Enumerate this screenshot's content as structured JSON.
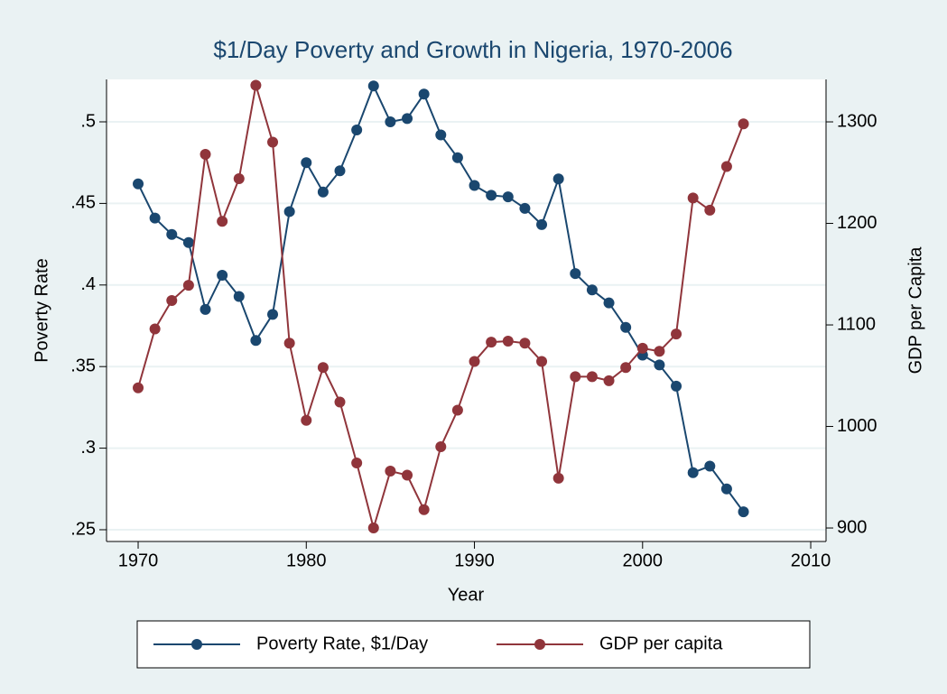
{
  "chart_data": {
    "type": "line",
    "title": "$1/Day Poverty and Growth in Nigeria, 1970-2006",
    "x_label": "Year",
    "y_label": "Poverty Rate",
    "y2_label": "GDP per Capita",
    "x": [
      1970,
      1971,
      1972,
      1973,
      1974,
      1975,
      1976,
      1977,
      1978,
      1979,
      1980,
      1981,
      1982,
      1983,
      1984,
      1985,
      1986,
      1987,
      1988,
      1989,
      1990,
      1991,
      1992,
      1993,
      1994,
      1995,
      1996,
      1997,
      1998,
      1999,
      2000,
      2001,
      2002,
      2003,
      2004,
      2005,
      2006
    ],
    "series": [
      {
        "name": "Poverty Rate, $1/Day",
        "color": "#1a476f",
        "values": [
          0.462,
          0.441,
          0.431,
          0.426,
          0.385,
          0.406,
          0.393,
          0.366,
          0.382,
          0.445,
          0.475,
          0.457,
          0.47,
          0.495,
          0.522,
          0.5,
          0.502,
          0.517,
          0.492,
          0.478,
          0.461,
          0.455,
          0.454,
          0.447,
          0.437,
          0.465,
          0.407,
          0.397,
          0.389,
          0.374,
          0.357,
          0.351,
          0.338,
          0.285,
          0.289,
          0.275,
          0.261
        ]
      },
      {
        "name": "GDP per capita",
        "color": "#90353b",
        "axis": "y2",
        "values": [
          1038,
          1096,
          1124,
          1139,
          1268,
          1202,
          1244,
          1336,
          1280,
          1082,
          1006,
          1058,
          1024,
          964,
          900,
          956,
          952,
          918,
          980,
          1016,
          1064,
          1083,
          1084,
          1082,
          1064,
          949,
          1049,
          1049,
          1045,
          1058,
          1077,
          1074,
          1091,
          1225,
          1213,
          1256,
          1298
        ]
      }
    ],
    "xlim": [
      1968.12,
      2010.91
    ],
    "xticks": [
      1970,
      1980,
      1990,
      2000,
      2010
    ],
    "ylim": [
      0.2428,
      0.526
    ],
    "yticks": [
      {
        "value": 0.25,
        "label": ".25"
      },
      {
        "value": 0.3,
        "label": ".3"
      },
      {
        "value": 0.35,
        "label": ".35"
      },
      {
        "value": 0.4,
        "label": ".4"
      },
      {
        "value": 0.45,
        "label": ".45"
      },
      {
        "value": 0.5,
        "label": ".5"
      }
    ],
    "y2lim": [
      886.7,
      1341.8
    ],
    "y2ticks": [
      900,
      1000,
      1100,
      1200,
      1300
    ],
    "grid": true,
    "legend": "bottom"
  }
}
